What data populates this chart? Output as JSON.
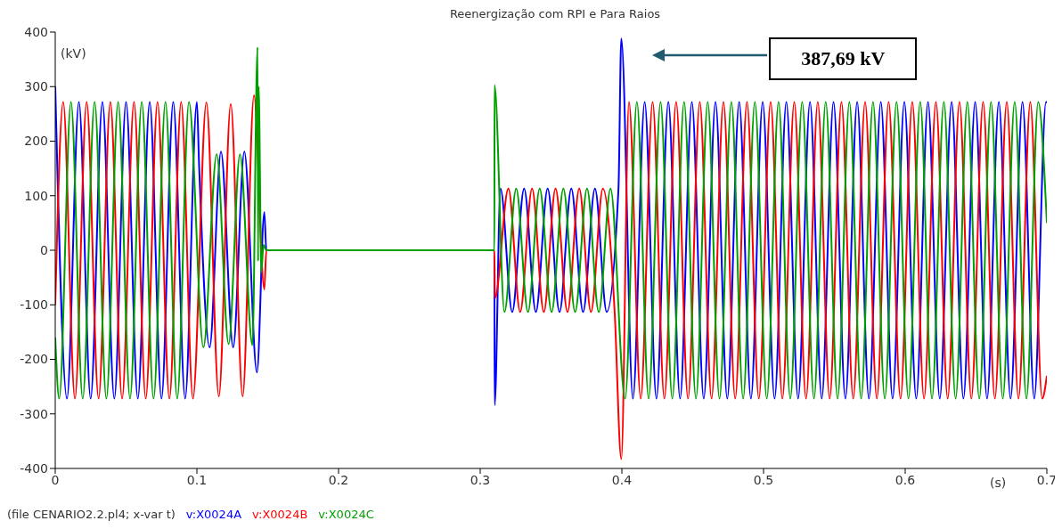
{
  "chart_data": {
    "type": "line",
    "title": "Reenergização com RPI e Para Raios",
    "xlabel": "(s)",
    "ylabel": "(kV)",
    "xlim": [
      0,
      0.7
    ],
    "xticks": [
      0,
      0.1,
      0.2,
      0.3,
      0.4,
      0.5,
      0.6,
      0.7
    ],
    "ylim": [
      -400,
      400
    ],
    "yticks": [
      -400,
      -300,
      -200,
      -100,
      0,
      100,
      200,
      300,
      400
    ],
    "grid": false,
    "legend": "bottom",
    "marker": "none",
    "line_style": "solid",
    "annotations": [
      "387,69 kV",
      "(file CENARIO2.2.pl4; x-var t)"
    ],
    "series": [
      {
        "name": "v:X0024A",
        "color": "#0000ff",
        "x": [
          0,
          0.0083,
          0.0167,
          0.025,
          0.0333,
          0.0417,
          0.05,
          0.0583,
          0.0667,
          0.075,
          0.0833,
          0.0917,
          0.1,
          0.1015,
          0.109,
          0.117,
          0.1256,
          0.1335,
          0.1424,
          0.1476,
          0.149,
          0.31,
          0.3102,
          0.3143,
          0.3226,
          0.331,
          0.3393,
          0.3476,
          0.356,
          0.3643,
          0.3726,
          0.381,
          0.3893,
          0.3976,
          0.3996,
          0.4078,
          0.4161,
          0.4244,
          0.4328,
          0.4411,
          0.4494,
          0.4578,
          0.4661,
          0.4744,
          0.4828,
          0.4911,
          0.4994,
          0.5078,
          0.5161,
          0.5244,
          0.5328,
          0.5411,
          0.5494,
          0.5578,
          0.5661,
          0.5744,
          0.5828,
          0.5911,
          0.5994,
          0.6078,
          0.6161,
          0.6244,
          0.6328,
          0.6411,
          0.6494,
          0.6578,
          0.6661,
          0.6744,
          0.6828,
          0.6911,
          0.6994,
          0.7
        ],
        "values": [
          300,
          -272,
          272,
          -272,
          272,
          -272,
          272,
          -272,
          272,
          -272,
          272,
          -272,
          272,
          160,
          -178,
          181,
          -178,
          181,
          -224,
          70,
          0,
          0,
          -284,
          113,
          -113,
          113,
          -113,
          113,
          -113,
          113,
          -113,
          113,
          -113,
          113,
          388,
          -272,
          272,
          -272,
          272,
          -272,
          272,
          -272,
          272,
          -272,
          272,
          -272,
          272,
          -272,
          272,
          -272,
          272,
          -272,
          272,
          -272,
          272,
          -272,
          272,
          -272,
          272,
          -272,
          272,
          -272,
          272,
          -272,
          272,
          -272,
          272,
          -272,
          272,
          -272,
          272,
          270
        ]
      },
      {
        "name": "v:X0024B",
        "color": "#ff0000",
        "x": [
          0,
          0.0056,
          0.0139,
          0.0222,
          0.0306,
          0.0389,
          0.0472,
          0.0556,
          0.0639,
          0.0722,
          0.0806,
          0.0889,
          0.0972,
          0.1067,
          0.1155,
          0.1239,
          0.1323,
          0.1403,
          0.1476,
          0.149,
          0.31,
          0.3104,
          0.3199,
          0.3282,
          0.3366,
          0.3449,
          0.3532,
          0.3616,
          0.3699,
          0.3782,
          0.3866,
          0.3949,
          0.3996,
          0.405,
          0.4133,
          0.4217,
          0.43,
          0.4383,
          0.4467,
          0.455,
          0.4633,
          0.4717,
          0.48,
          0.4883,
          0.4967,
          0.505,
          0.5133,
          0.5217,
          0.53,
          0.5383,
          0.5467,
          0.555,
          0.5633,
          0.5717,
          0.58,
          0.5883,
          0.5967,
          0.605,
          0.6133,
          0.6217,
          0.63,
          0.6383,
          0.6467,
          0.655,
          0.6633,
          0.6717,
          0.68,
          0.6883,
          0.6967,
          0.7
        ],
        "values": [
          -100,
          272,
          -272,
          272,
          -272,
          272,
          -272,
          272,
          -272,
          272,
          -272,
          272,
          -272,
          271,
          -268,
          268,
          -268,
          284,
          -72,
          0,
          0,
          -88,
          113,
          -113,
          113,
          -113,
          113,
          -113,
          113,
          -113,
          113,
          -113,
          -383,
          272,
          -272,
          272,
          -272,
          272,
          -272,
          272,
          -272,
          272,
          -272,
          272,
          -272,
          272,
          -272,
          272,
          -272,
          272,
          -272,
          272,
          -272,
          272,
          -272,
          272,
          -272,
          272,
          -272,
          272,
          -272,
          272,
          -272,
          272,
          -272,
          272,
          -272,
          272,
          -272,
          -230
        ]
      },
      {
        "name": "v:X0024C",
        "color": "#00a000",
        "x": [
          0,
          0.0028,
          0.0111,
          0.0194,
          0.0278,
          0.0361,
          0.0444,
          0.0528,
          0.0611,
          0.0694,
          0.0778,
          0.0861,
          0.0944,
          0.1046,
          0.114,
          0.1224,
          0.1304,
          0.1392,
          0.1428,
          0.1432,
          0.1436,
          0.1455,
          0.147,
          0.149,
          0.31,
          0.3101,
          0.3171,
          0.3254,
          0.3337,
          0.342,
          0.3504,
          0.3587,
          0.367,
          0.3754,
          0.3837,
          0.392,
          0.4023,
          0.4106,
          0.4189,
          0.4273,
          0.4356,
          0.4439,
          0.4523,
          0.4606,
          0.4689,
          0.4773,
          0.4856,
          0.4939,
          0.5023,
          0.5106,
          0.5189,
          0.5273,
          0.5356,
          0.5439,
          0.5523,
          0.5606,
          0.5689,
          0.5773,
          0.5856,
          0.5939,
          0.6023,
          0.6106,
          0.6189,
          0.6273,
          0.6356,
          0.6439,
          0.6523,
          0.6606,
          0.6689,
          0.6773,
          0.6856,
          0.6939,
          0.7
        ],
        "values": [
          -160,
          -272,
          272,
          -272,
          272,
          -272,
          272,
          -272,
          272,
          -272,
          272,
          -272,
          272,
          -178,
          176,
          -172,
          176,
          -174,
          372,
          -20,
          300,
          -40,
          10,
          0,
          0,
          303,
          -113,
          113,
          -113,
          113,
          -113,
          113,
          -113,
          113,
          -113,
          113,
          -272,
          272,
          -272,
          272,
          -272,
          272,
          -272,
          272,
          -272,
          272,
          -272,
          272,
          -272,
          272,
          -272,
          272,
          -272,
          272,
          -272,
          272,
          -272,
          272,
          -272,
          272,
          -272,
          272,
          -272,
          272,
          -272,
          272,
          -272,
          272,
          -272,
          272,
          -272,
          272,
          50
        ]
      }
    ]
  }
}
